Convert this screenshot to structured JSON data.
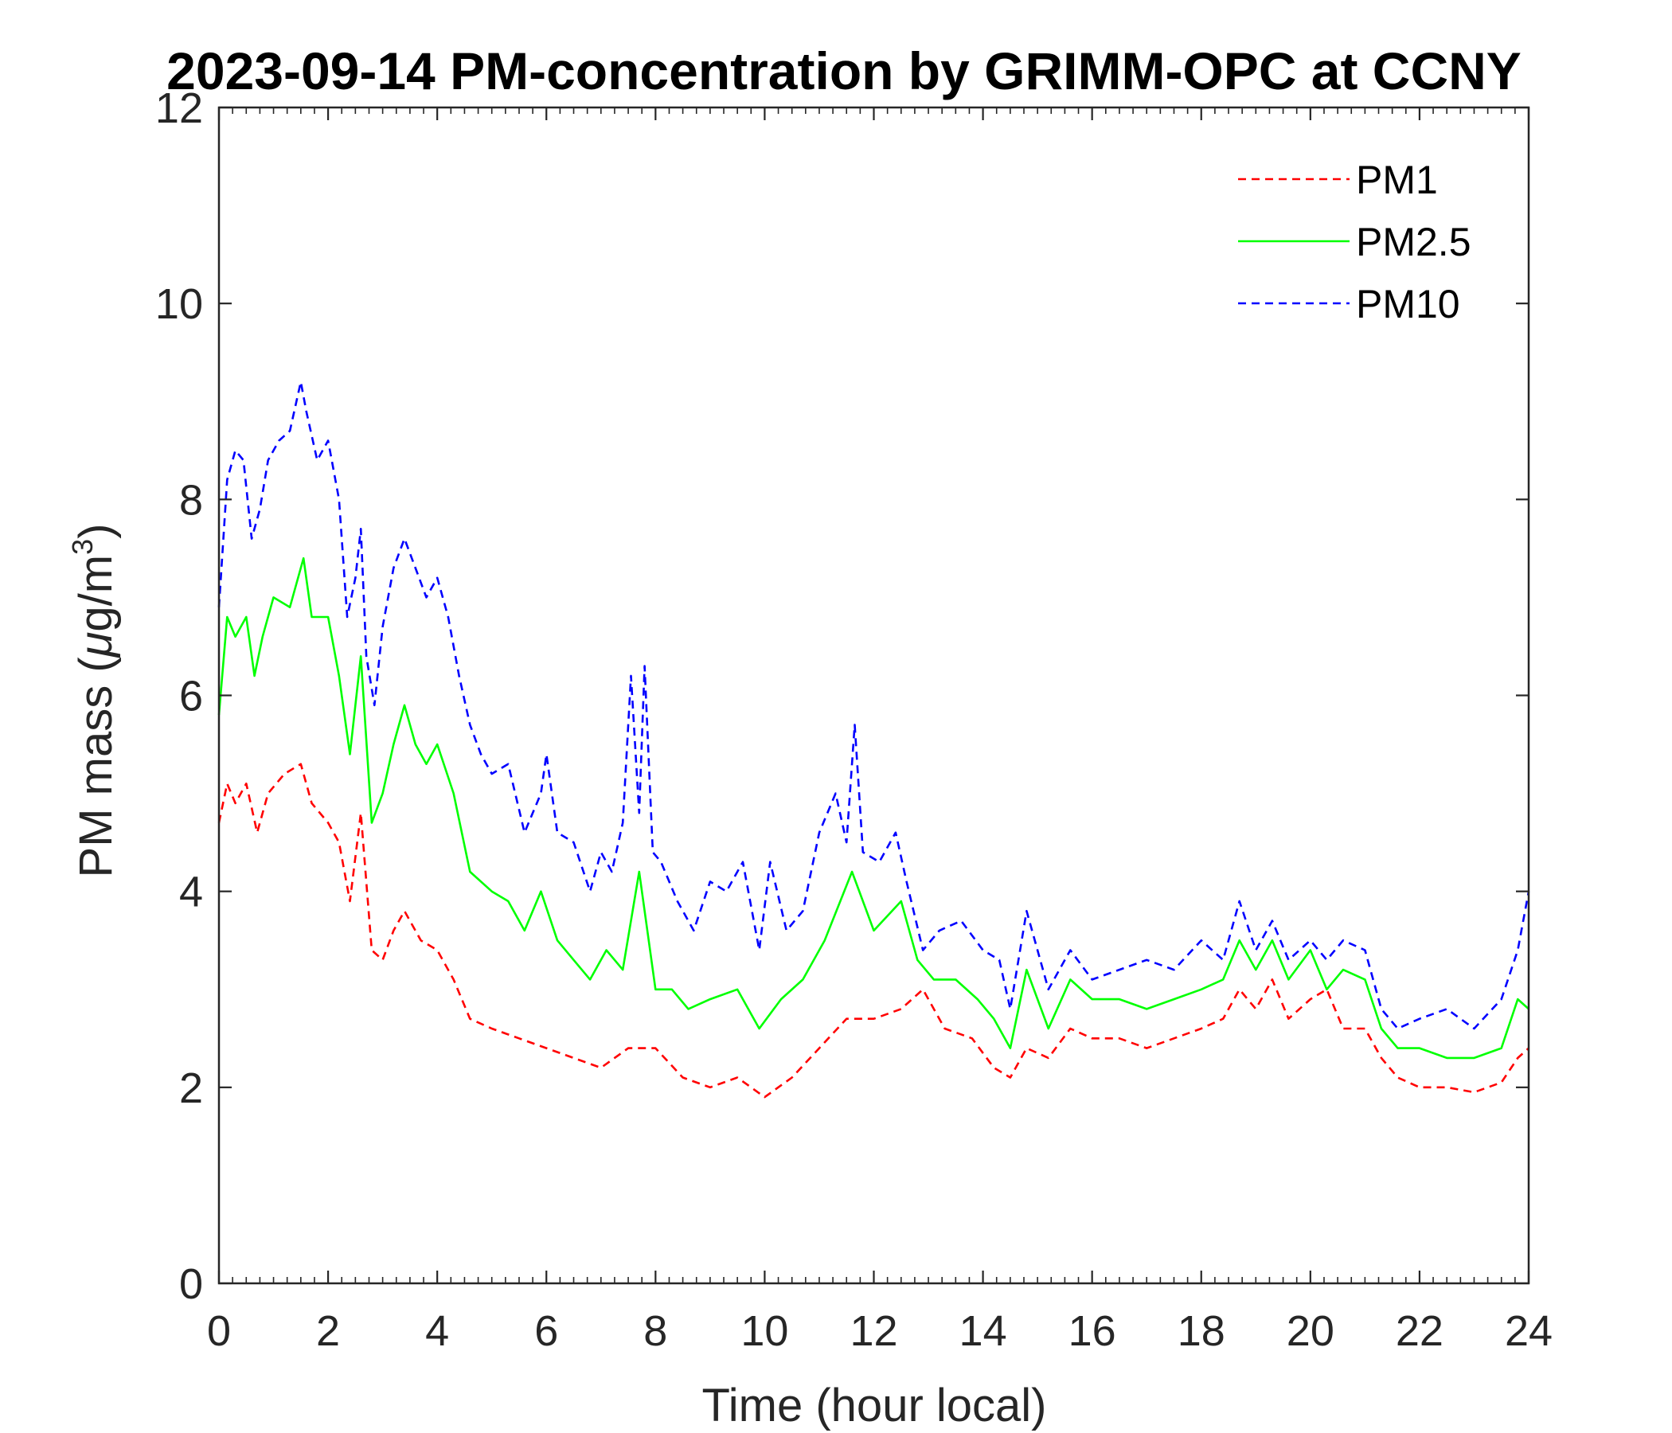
{
  "chart_data": {
    "type": "line",
    "title": "2023-09-14 PM-concentration by GRIMM-OPC at CCNY",
    "xlabel": "Time (hour local)",
    "ylabel_prefix": "PM mass (",
    "ylabel_mu": "μ",
    "ylabel_unit": "g/m",
    "ylabel_exp": "3",
    "ylabel_suffix": ")",
    "xlim": [
      0,
      24
    ],
    "ylim": [
      0,
      12
    ],
    "xticks": [
      0,
      2,
      4,
      6,
      8,
      10,
      12,
      14,
      16,
      18,
      20,
      22,
      24
    ],
    "yticks": [
      0,
      2,
      4,
      6,
      8,
      10,
      12
    ],
    "legend_position": "top-right",
    "series": [
      {
        "name": "PM1",
        "color": "#ff0000",
        "style": "dashed",
        "x": [
          0,
          0.15,
          0.3,
          0.5,
          0.7,
          0.9,
          1.2,
          1.5,
          1.7,
          2.0,
          2.2,
          2.4,
          2.6,
          2.8,
          3.0,
          3.2,
          3.4,
          3.7,
          4.0,
          4.3,
          4.6,
          5.0,
          5.5,
          6.0,
          6.5,
          7.0,
          7.5,
          8.0,
          8.5,
          9.0,
          9.5,
          10.0,
          10.5,
          11.0,
          11.5,
          12.0,
          12.5,
          12.9,
          13.3,
          13.8,
          14.2,
          14.5,
          14.8,
          15.2,
          15.6,
          16.0,
          16.5,
          17.0,
          17.5,
          18.0,
          18.4,
          18.7,
          19.0,
          19.3,
          19.6,
          20.0,
          20.3,
          20.6,
          21.0,
          21.3,
          21.6,
          22.0,
          22.5,
          23.0,
          23.5,
          23.8,
          24.0
        ],
        "y": [
          4.7,
          5.1,
          4.9,
          5.1,
          4.6,
          5.0,
          5.2,
          5.3,
          4.9,
          4.7,
          4.5,
          3.9,
          4.8,
          3.4,
          3.3,
          3.6,
          3.8,
          3.5,
          3.4,
          3.1,
          2.7,
          2.6,
          2.5,
          2.4,
          2.3,
          2.2,
          2.4,
          2.4,
          2.1,
          2.0,
          2.1,
          1.9,
          2.1,
          2.4,
          2.7,
          2.7,
          2.8,
          3.0,
          2.6,
          2.5,
          2.2,
          2.1,
          2.4,
          2.3,
          2.6,
          2.5,
          2.5,
          2.4,
          2.5,
          2.6,
          2.7,
          3.0,
          2.8,
          3.1,
          2.7,
          2.9,
          3.0,
          2.6,
          2.6,
          2.3,
          2.1,
          2.0,
          2.0,
          1.95,
          2.05,
          2.3,
          2.4
        ]
      },
      {
        "name": "PM2.5",
        "color": "#00ff00",
        "style": "solid",
        "x": [
          0,
          0.15,
          0.3,
          0.5,
          0.65,
          0.8,
          1.0,
          1.3,
          1.55,
          1.7,
          2.0,
          2.2,
          2.4,
          2.6,
          2.8,
          3.0,
          3.2,
          3.4,
          3.6,
          3.8,
          4.0,
          4.3,
          4.6,
          5.0,
          5.3,
          5.6,
          5.9,
          6.2,
          6.5,
          6.8,
          7.1,
          7.4,
          7.7,
          8.0,
          8.3,
          8.6,
          9.0,
          9.5,
          9.9,
          10.3,
          10.7,
          11.1,
          11.6,
          12.0,
          12.5,
          12.8,
          13.1,
          13.5,
          13.9,
          14.2,
          14.5,
          14.8,
          15.2,
          15.6,
          16.0,
          16.5,
          17.0,
          17.5,
          18.0,
          18.4,
          18.7,
          19.0,
          19.3,
          19.6,
          20.0,
          20.3,
          20.6,
          21.0,
          21.3,
          21.6,
          22.0,
          22.5,
          23.0,
          23.5,
          23.8,
          24.0
        ],
        "y": [
          5.8,
          6.8,
          6.6,
          6.8,
          6.2,
          6.6,
          7.0,
          6.9,
          7.4,
          6.8,
          6.8,
          6.2,
          5.4,
          6.4,
          4.7,
          5.0,
          5.5,
          5.9,
          5.5,
          5.3,
          5.5,
          5.0,
          4.2,
          4.0,
          3.9,
          3.6,
          4.0,
          3.5,
          3.3,
          3.1,
          3.4,
          3.2,
          4.2,
          3.0,
          3.0,
          2.8,
          2.9,
          3.0,
          2.6,
          2.9,
          3.1,
          3.5,
          4.2,
          3.6,
          3.9,
          3.3,
          3.1,
          3.1,
          2.9,
          2.7,
          2.4,
          3.2,
          2.6,
          3.1,
          2.9,
          2.9,
          2.8,
          2.9,
          3.0,
          3.1,
          3.5,
          3.2,
          3.5,
          3.1,
          3.4,
          3.0,
          3.2,
          3.1,
          2.6,
          2.4,
          2.4,
          2.3,
          2.3,
          2.4,
          2.9,
          2.8
        ]
      },
      {
        "name": "PM10",
        "color": "#0000ff",
        "style": "dashed",
        "x": [
          0,
          0.15,
          0.3,
          0.45,
          0.6,
          0.75,
          0.9,
          1.1,
          1.3,
          1.5,
          1.6,
          1.8,
          2.0,
          2.2,
          2.35,
          2.5,
          2.6,
          2.7,
          2.85,
          3.0,
          3.2,
          3.4,
          3.6,
          3.8,
          4.0,
          4.2,
          4.4,
          4.6,
          4.8,
          5.0,
          5.3,
          5.6,
          5.9,
          6.0,
          6.2,
          6.5,
          6.8,
          7.0,
          7.2,
          7.4,
          7.55,
          7.7,
          7.8,
          7.95,
          8.1,
          8.4,
          8.7,
          9.0,
          9.3,
          9.6,
          9.9,
          10.1,
          10.4,
          10.7,
          11.0,
          11.3,
          11.5,
          11.65,
          11.8,
          12.1,
          12.4,
          12.6,
          12.9,
          13.2,
          13.6,
          14.0,
          14.3,
          14.5,
          14.8,
          15.2,
          15.6,
          16.0,
          16.5,
          17.0,
          17.5,
          18.0,
          18.4,
          18.7,
          19.0,
          19.3,
          19.6,
          20.0,
          20.3,
          20.6,
          21.0,
          21.3,
          21.6,
          22.0,
          22.5,
          23.0,
          23.5,
          23.8,
          24.0
        ],
        "y": [
          6.9,
          8.2,
          8.5,
          8.4,
          7.6,
          7.9,
          8.4,
          8.6,
          8.7,
          9.2,
          8.9,
          8.4,
          8.6,
          8.0,
          6.8,
          7.2,
          7.7,
          6.4,
          5.9,
          6.7,
          7.3,
          7.6,
          7.3,
          7.0,
          7.2,
          6.8,
          6.2,
          5.7,
          5.4,
          5.2,
          5.3,
          4.6,
          5.0,
          5.4,
          4.6,
          4.5,
          4.0,
          4.4,
          4.2,
          4.7,
          6.2,
          4.8,
          6.3,
          4.4,
          4.3,
          3.9,
          3.6,
          4.1,
          4.0,
          4.3,
          3.4,
          4.3,
          3.6,
          3.8,
          4.6,
          5.0,
          4.5,
          5.7,
          4.4,
          4.3,
          4.6,
          4.1,
          3.4,
          3.6,
          3.7,
          3.4,
          3.3,
          2.8,
          3.8,
          3.0,
          3.4,
          3.1,
          3.2,
          3.3,
          3.2,
          3.5,
          3.3,
          3.9,
          3.4,
          3.7,
          3.3,
          3.5,
          3.3,
          3.5,
          3.4,
          2.8,
          2.6,
          2.7,
          2.8,
          2.6,
          2.9,
          3.4,
          4.0
        ]
      }
    ]
  }
}
